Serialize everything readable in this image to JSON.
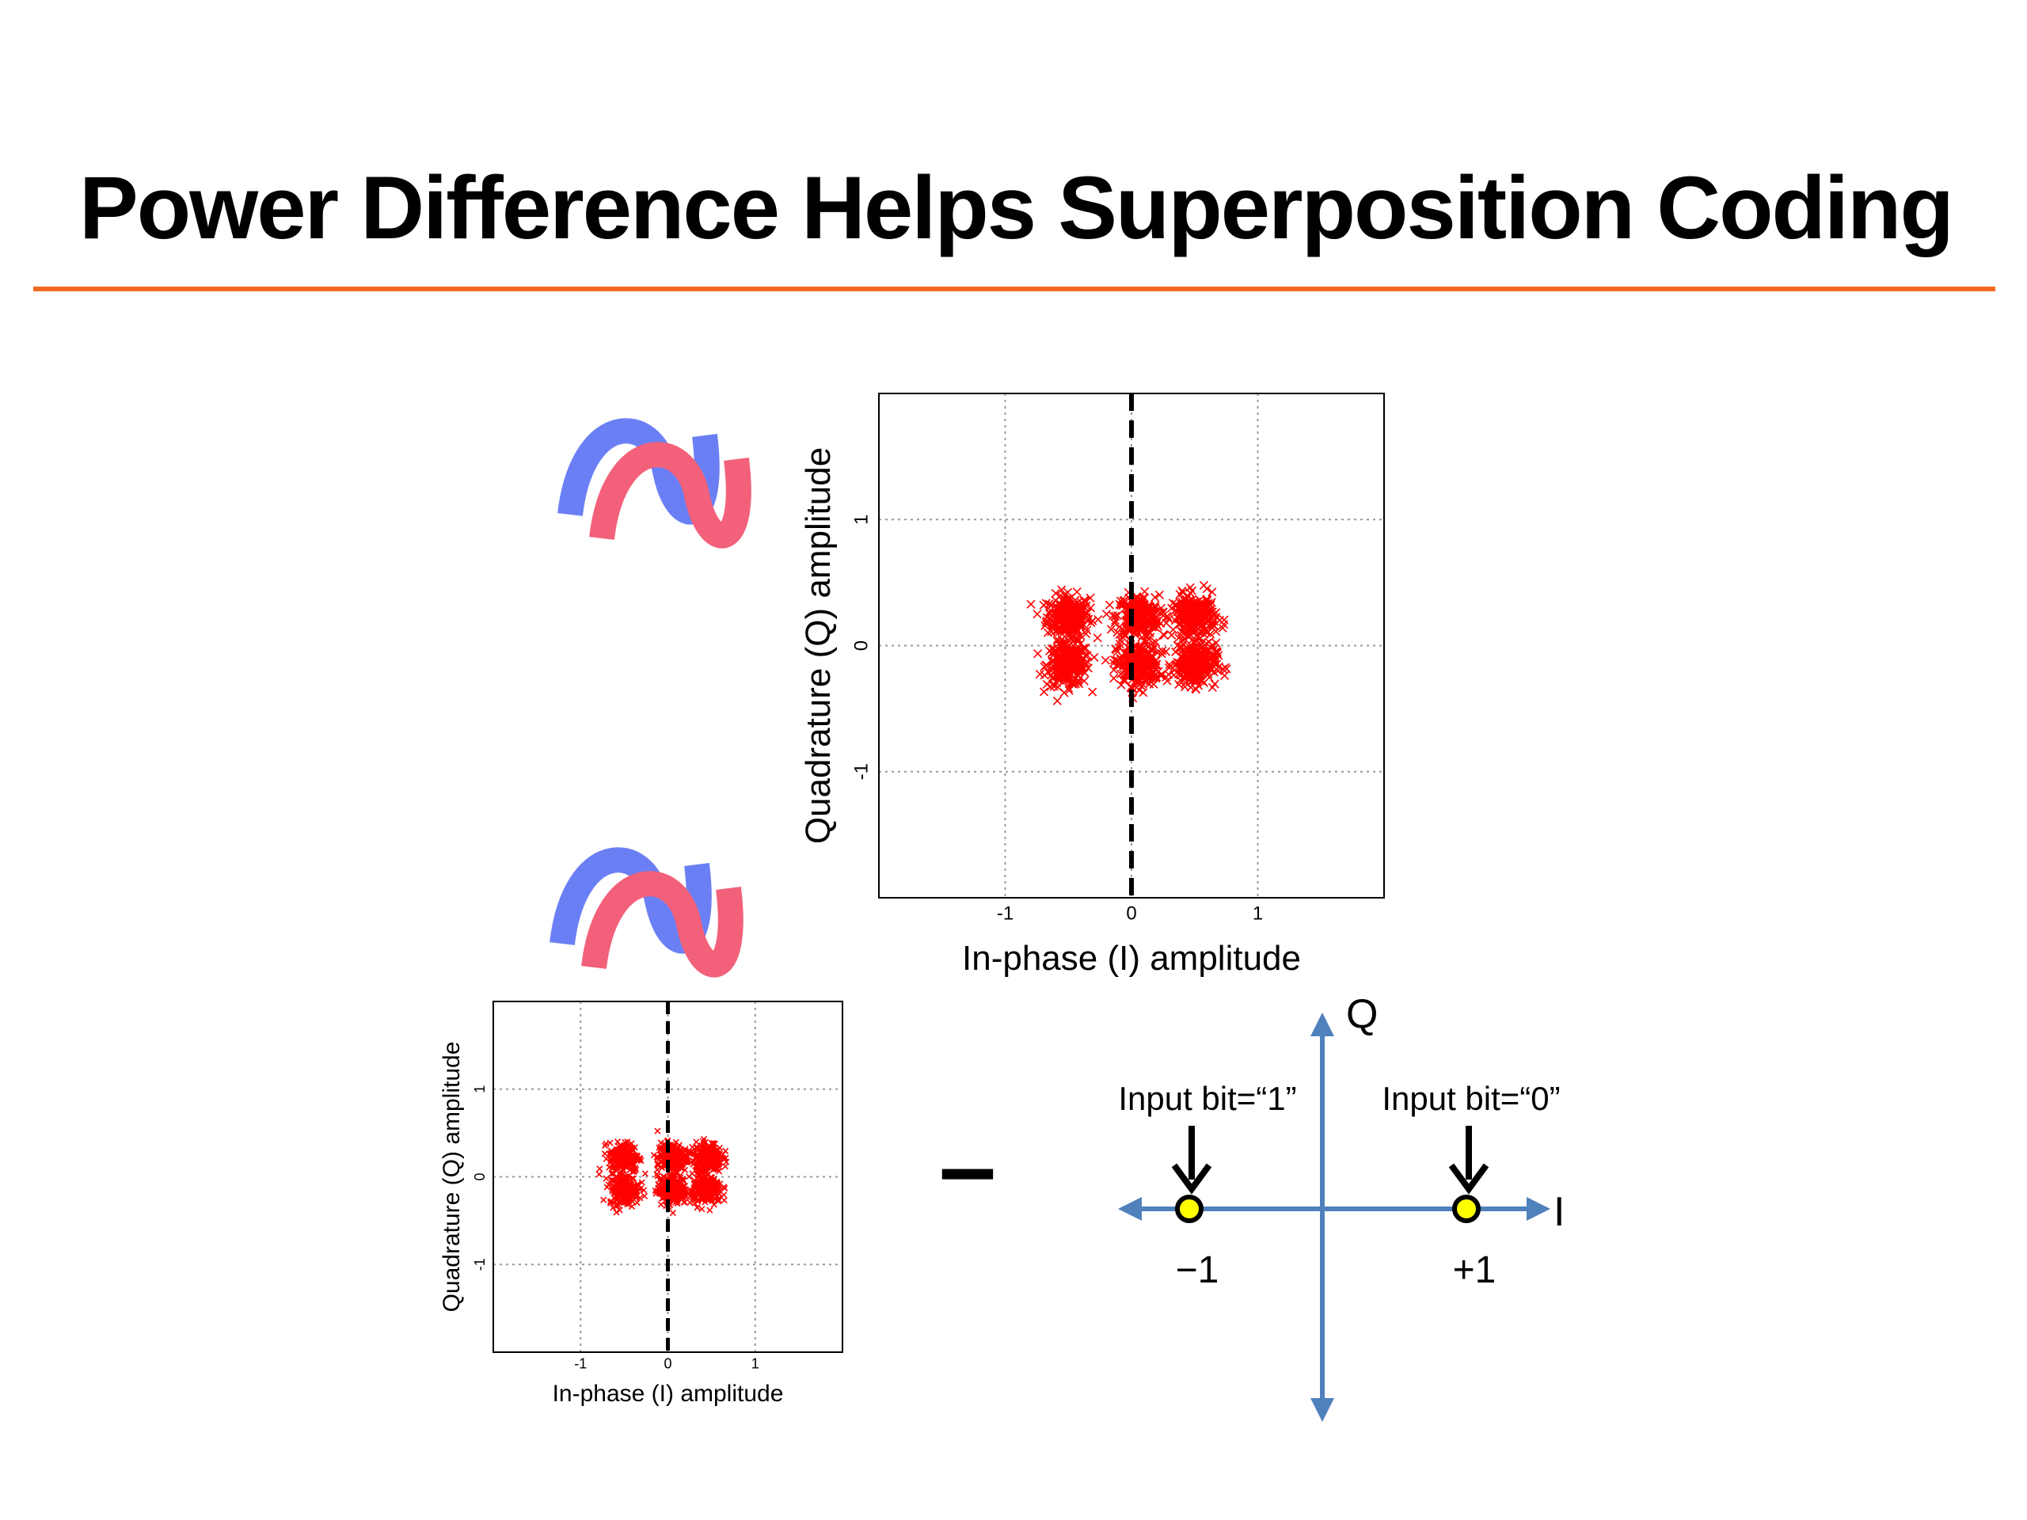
{
  "slide": {
    "title": "Power Difference Helps Superposition Coding",
    "accent_color": "#f26b21"
  },
  "icons": [
    {
      "name": "overlapping-waves-icon",
      "colors": [
        "#6b7ff5",
        "#f2607a"
      ]
    },
    {
      "name": "overlapping-waves-icon",
      "colors": [
        "#6b7ff5",
        "#f2607a"
      ]
    }
  ],
  "chart_data": [
    {
      "type": "scatter",
      "xlabel": "In-phase (I) amplitude",
      "ylabel": "Quadrature (Q) amplitude",
      "xlim": [
        -2,
        2
      ],
      "ylim": [
        -2,
        2
      ],
      "xticks": [
        "-1",
        "0",
        "1"
      ],
      "yticks": [
        "1",
        "0",
        "-1"
      ],
      "grid": true,
      "marker": "x",
      "color": "#ff0000",
      "clusters": [
        {
          "x": -0.5,
          "y": 0.23
        },
        {
          "x": -0.5,
          "y": -0.15
        },
        {
          "x": 0.05,
          "y": 0.23
        },
        {
          "x": 0.05,
          "y": -0.15
        },
        {
          "x": 0.5,
          "y": 0.23
        },
        {
          "x": 0.5,
          "y": -0.15
        }
      ],
      "decision_boundary_x": 0
    },
    {
      "type": "scatter",
      "xlabel": "In-phase (I) amplitude",
      "ylabel": "Quadrature (Q) amplitude",
      "xlim": [
        -2,
        2
      ],
      "ylim": [
        -2,
        2
      ],
      "xticks": [
        "-1",
        "0",
        "1"
      ],
      "yticks": [
        "1",
        "0",
        "-1"
      ],
      "grid": true,
      "marker": "x",
      "color": "#ff0000",
      "clusters": [
        {
          "x": -0.5,
          "y": 0.22
        },
        {
          "x": -0.5,
          "y": -0.15
        },
        {
          "x": 0.05,
          "y": 0.22
        },
        {
          "x": 0.05,
          "y": -0.15
        },
        {
          "x": 0.45,
          "y": 0.22
        },
        {
          "x": 0.45,
          "y": -0.15
        }
      ],
      "decision_boundary_x": 0
    }
  ],
  "operator": {
    "symbol": "–"
  },
  "bpsk_diagram": {
    "axis_color": "#4f81bd",
    "point_color": "#ffff00",
    "i_label": "I",
    "q_label": "Q",
    "points": [
      {
        "value": "−1",
        "annotation": "Input bit=“1”"
      },
      {
        "value": "+1",
        "annotation": "Input bit=“0”"
      }
    ]
  }
}
